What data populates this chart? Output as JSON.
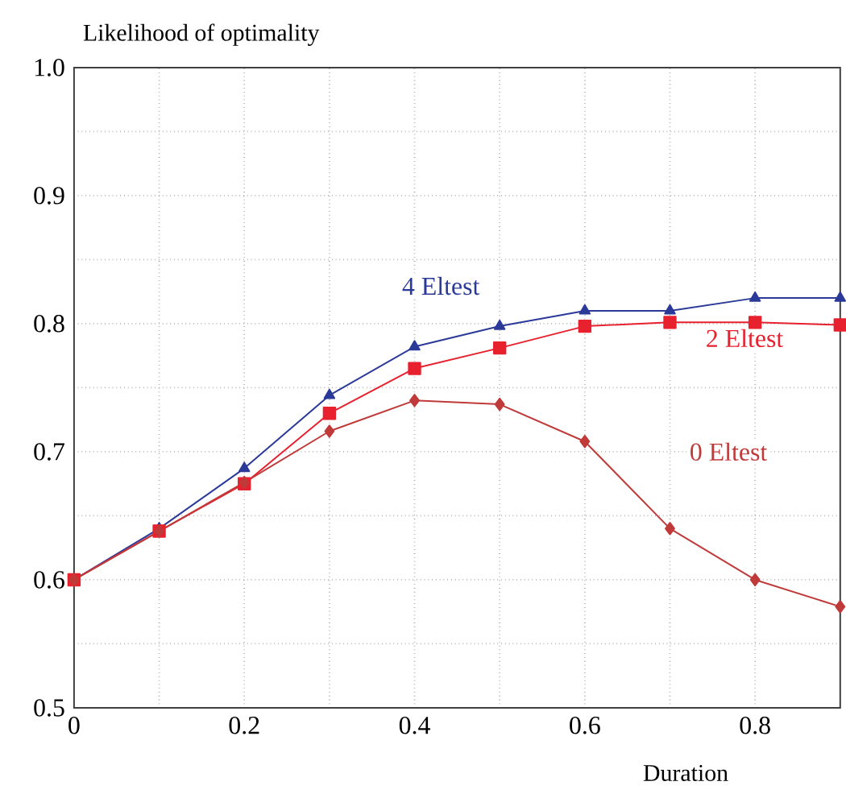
{
  "chart_data": {
    "type": "line",
    "ylabel": "Likelihood of optimality",
    "xlabel": "Duration",
    "x": [
      0,
      0.1,
      0.2,
      0.3,
      0.4,
      0.5,
      0.6,
      0.7,
      0.8,
      0.9
    ],
    "series": [
      {
        "name": "4 Eltest",
        "color": "#2b3a98",
        "marker": "triangle",
        "values": [
          0.6,
          0.64,
          0.687,
          0.744,
          0.782,
          0.798,
          0.81,
          0.81,
          0.82,
          0.82
        ]
      },
      {
        "name": "2 Eltest",
        "color": "#e8212e",
        "marker": "square",
        "values": [
          0.6,
          0.638,
          0.675,
          0.73,
          0.765,
          0.781,
          0.798,
          0.801,
          0.801,
          0.799
        ]
      },
      {
        "name": "0 Eltest",
        "color": "#c03a3a",
        "marker": "diamond",
        "values": [
          0.6,
          0.638,
          0.676,
          0.716,
          0.74,
          0.737,
          0.708,
          0.64,
          0.6,
          0.579
        ]
      }
    ],
    "xlim": [
      0,
      0.9
    ],
    "ylim": [
      0.5,
      1.0
    ],
    "xticks": [
      0,
      {
        "value": 0.1,
        "label": null
      },
      0.2,
      {
        "value": 0.3,
        "label": null
      },
      0.4,
      {
        "value": 0.5,
        "label": null
      },
      0.6,
      {
        "value": 0.7,
        "label": null
      },
      0.8
    ],
    "yticks": [
      0.5,
      {
        "value": 0.55,
        "label": null
      },
      0.6,
      {
        "value": 0.65,
        "label": null
      },
      0.7,
      {
        "value": 0.75,
        "label": null
      },
      0.8,
      {
        "value": 0.85,
        "label": null
      },
      0.9,
      {
        "value": 0.95,
        "label": null
      },
      {
        "value": 1,
        "label": "1.0"
      }
    ],
    "grid": true,
    "line_style": "solid"
  }
}
